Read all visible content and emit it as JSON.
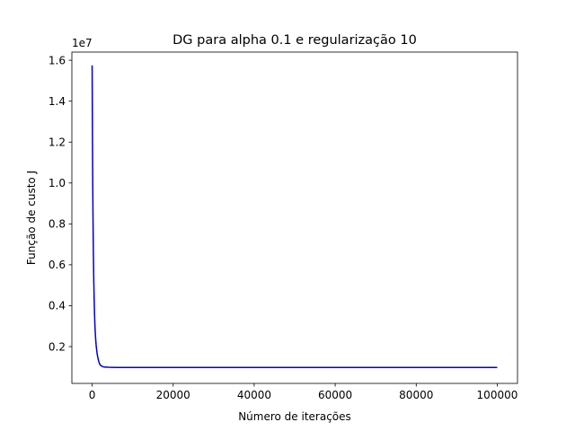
{
  "chart_data": {
    "type": "line",
    "title": "DG para alpha 0.1 e regularização 10",
    "xlabel": "Número de iterações",
    "ylabel": "Função de custo J",
    "offset_label": "1e7",
    "xlim": [
      -5000,
      105000
    ],
    "ylim": [
      0.2,
      16.4
    ],
    "y_scale_factor": 10000000,
    "grid": false,
    "legend": "none",
    "x_ticks": [
      0,
      20000,
      40000,
      60000,
      80000,
      100000
    ],
    "x_tick_labels": [
      "0",
      "20000",
      "40000",
      "60000",
      "80000",
      "100000"
    ],
    "y_ticks": [
      2,
      4,
      6,
      8,
      10,
      12,
      14,
      16
    ],
    "y_tick_labels": [
      "0.2",
      "0.4",
      "0.6",
      "0.8",
      "1.0",
      "1.2",
      "1.4",
      "1.6"
    ],
    "series": [
      {
        "color": "#0000cc",
        "x": [
          0,
          50,
          100,
          150,
          200,
          300,
          400,
          500,
          600,
          700,
          800,
          900,
          1000,
          1200,
          1400,
          1600,
          1800,
          2000,
          2500,
          3000,
          4000,
          6000,
          10000,
          20000,
          40000,
          60000,
          80000,
          100000
        ],
        "y": [
          15.75,
          13.5,
          11.6,
          10.0,
          8.7,
          6.7,
          5.3,
          4.3,
          3.55,
          3.0,
          2.6,
          2.3,
          2.05,
          1.7,
          1.47,
          1.3,
          1.18,
          1.1,
          1.03,
          1.0,
          0.99,
          0.98,
          0.98,
          0.98,
          0.98,
          0.98,
          0.98,
          0.98
        ]
      }
    ]
  }
}
